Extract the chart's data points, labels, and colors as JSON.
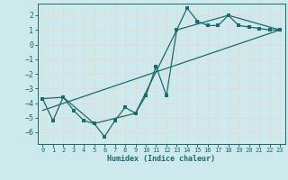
{
  "xlabel": "Humidex (Indice chaleur)",
  "xlim": [
    -0.5,
    23.5
  ],
  "ylim": [
    -6.8,
    2.8
  ],
  "xticks": [
    0,
    1,
    2,
    3,
    4,
    5,
    6,
    7,
    8,
    9,
    10,
    11,
    12,
    13,
    14,
    15,
    16,
    17,
    18,
    19,
    20,
    21,
    22,
    23
  ],
  "yticks": [
    -6,
    -5,
    -4,
    -3,
    -2,
    -1,
    0,
    1,
    2
  ],
  "background_color": "#cce9ec",
  "line_color": "#1a6b6b",
  "grid_color": "#e8d8d8",
  "line1_x": [
    0,
    1,
    2,
    3,
    4,
    5,
    6,
    7,
    8,
    9,
    10,
    11,
    12,
    13,
    14,
    15,
    16,
    17,
    18,
    19,
    20,
    21,
    22,
    23
  ],
  "line1_y": [
    -3.7,
    -5.2,
    -3.6,
    -4.5,
    -5.2,
    -5.4,
    -6.3,
    -5.2,
    -4.3,
    -4.7,
    -3.5,
    -1.5,
    -3.5,
    1.0,
    2.5,
    1.6,
    1.3,
    1.3,
    2.0,
    1.3,
    1.2,
    1.1,
    1.0,
    1.0
  ],
  "line2_x": [
    0,
    2,
    5,
    9,
    13,
    18,
    23
  ],
  "line2_y": [
    -3.7,
    -3.6,
    -5.4,
    -4.7,
    1.0,
    2.0,
    1.0
  ],
  "line3_x": [
    0,
    23
  ],
  "line3_y": [
    -4.5,
    1.0
  ]
}
